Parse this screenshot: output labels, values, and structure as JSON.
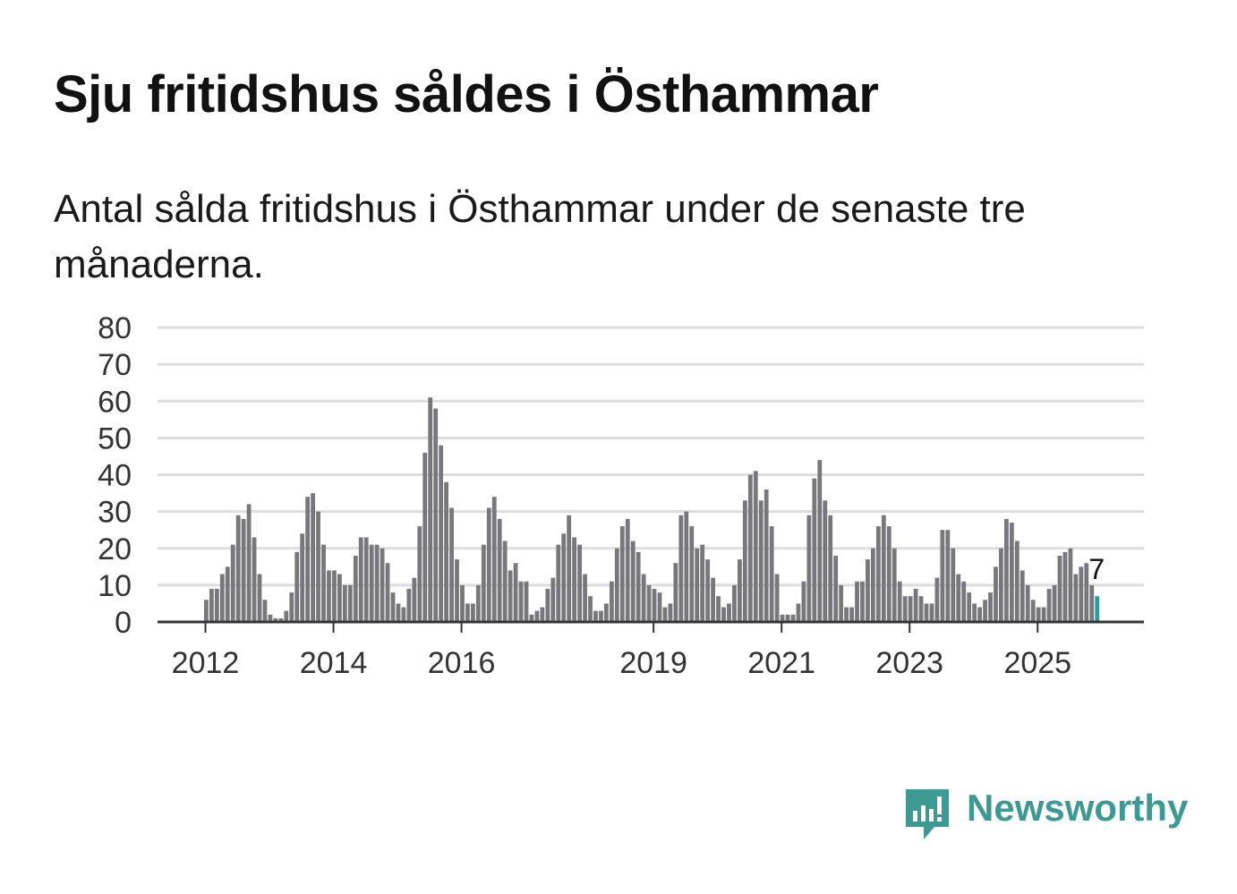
{
  "title": "Sju fritidshus såldes i Östhammar",
  "subtitle": "Antal sålda fritidshus i Östhammar under de senaste tre månaderna.",
  "brand": {
    "name": "Newsworthy",
    "icon": "newsworthy-chart-bubble-icon",
    "color": "#3d9a92"
  },
  "chart_data": {
    "type": "bar",
    "title": "Sju fritidshus såldes i Östhammar",
    "xlabel": "",
    "ylabel": "",
    "ylim": [
      0,
      80
    ],
    "yticks": [
      "0",
      "10",
      "20",
      "30",
      "40",
      "50",
      "60",
      "70",
      "80"
    ],
    "xticks": [
      {
        "label": "2012",
        "index": 0
      },
      {
        "label": "2014",
        "index": 24
      },
      {
        "label": "2016",
        "index": 48
      },
      {
        "label": "2019",
        "index": 84
      },
      {
        "label": "2021",
        "index": 108
      },
      {
        "label": "2023",
        "index": 132
      },
      {
        "label": "2025",
        "index": 156
      }
    ],
    "bar_color": "#78777c",
    "highlight_color": "#2a9d96",
    "highlight_label": "7",
    "values": [
      6,
      9,
      9,
      13,
      15,
      21,
      29,
      28,
      32,
      23,
      13,
      6,
      2,
      1,
      1,
      3,
      8,
      19,
      24,
      34,
      35,
      30,
      21,
      14,
      14,
      13,
      10,
      10,
      18,
      23,
      23,
      21,
      21,
      20,
      16,
      8,
      5,
      4,
      9,
      12,
      26,
      46,
      61,
      58,
      48,
      38,
      31,
      17,
      10,
      5,
      5,
      10,
      21,
      31,
      34,
      28,
      22,
      14,
      16,
      11,
      11,
      2,
      3,
      4,
      9,
      12,
      21,
      24,
      29,
      23,
      21,
      13,
      7,
      3,
      3,
      5,
      11,
      20,
      26,
      28,
      22,
      19,
      13,
      10,
      9,
      8,
      4,
      5,
      16,
      29,
      30,
      26,
      20,
      21,
      17,
      12,
      7,
      4,
      5,
      10,
      17,
      33,
      40,
      41,
      33,
      36,
      26,
      13,
      2,
      2,
      2,
      5,
      11,
      29,
      39,
      44,
      33,
      29,
      18,
      10,
      4,
      4,
      11,
      11,
      17,
      20,
      26,
      29,
      26,
      20,
      11,
      7,
      7,
      9,
      7,
      5,
      5,
      12,
      25,
      25,
      20,
      13,
      11,
      8,
      5,
      4,
      6,
      8,
      15,
      20,
      28,
      27,
      22,
      14,
      10,
      6,
      4,
      4,
      9,
      10,
      18,
      19,
      20,
      13,
      15,
      16,
      10,
      7
    ]
  }
}
